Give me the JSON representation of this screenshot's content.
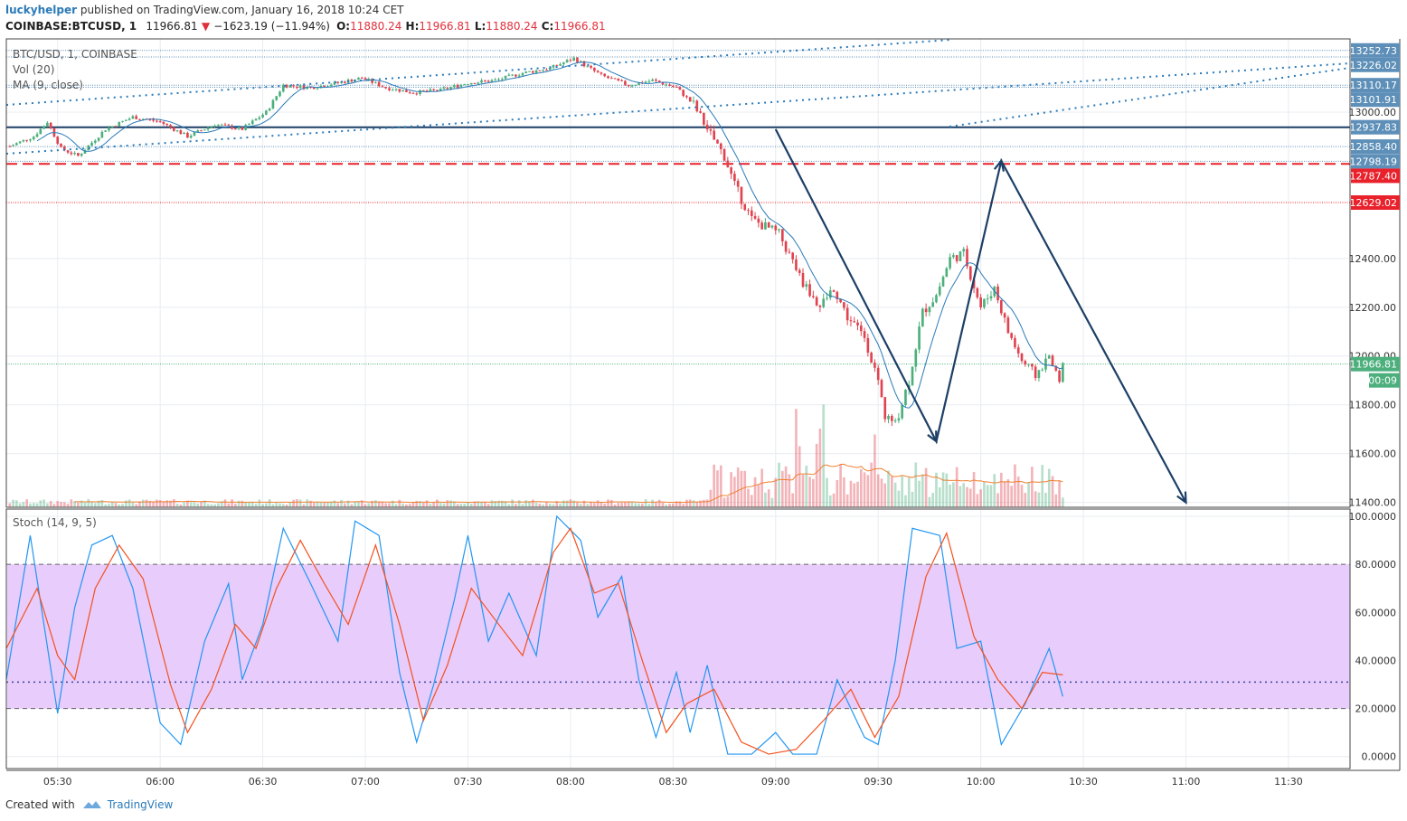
{
  "header": {
    "author": "luckyhelper",
    "published": " published on TradingView.com, January 16, 2018 10:24 CET"
  },
  "quote": {
    "symbol": "COINBASE:BTCUSD, 1",
    "last": "11966.81",
    "change": "−1623.19 (−11.94%)",
    "open_label": "O:",
    "open": "11880.24",
    "high_label": "H:",
    "high": "11966.81",
    "low_label": "L:",
    "low": "11880.24",
    "close_label": "C:",
    "close": "11966.81"
  },
  "legend": {
    "title": "BTC/USD, 1, COINBASE",
    "vol": "Vol (20)",
    "ma": "MA (9, close)",
    "stoch": "Stoch (14, 9, 5)"
  },
  "price_tags": [
    {
      "text": "13252.73",
      "value": 13252.73,
      "color": "#5d8fb8"
    },
    {
      "text": "13226.02",
      "value": 13226.02,
      "color": "#5d8fb8"
    },
    {
      "text": "13110.17",
      "value": 13110.17,
      "color": "#5d8fb8"
    },
    {
      "text": "13101.91",
      "value": 13101.91,
      "color": "#5d8fb8"
    },
    {
      "text": "12937.83",
      "value": 12937.83,
      "color": "#5d8fb8"
    },
    {
      "text": "12858.40",
      "value": 12858.4,
      "color": "#5d8fb8"
    },
    {
      "text": "12798.19",
      "value": 12798.19,
      "color": "#5d8fb8"
    },
    {
      "text": "12787.40",
      "value": 12787.4,
      "color": "#e8212b"
    },
    {
      "text": "12629.02",
      "value": 12629.02,
      "color": "#e8212b"
    },
    {
      "text": "11966.81",
      "value": 11966.81,
      "color": "#4caf7c"
    }
  ],
  "countdown": "00:09",
  "footer": {
    "created": "Created with",
    "brand": "TradingView"
  },
  "chart_data": [
    {
      "type": "candlestick",
      "title": "BTC/USD, 1, COINBASE",
      "ylim": [
        11380,
        13300
      ],
      "y_ticks": [
        "13000.00",
        "12400.00",
        "12200.00",
        "12000.00",
        "11800.00",
        "11600.00",
        "11400.00"
      ],
      "x_ticks": [
        "05:30",
        "06:00",
        "06:30",
        "07:00",
        "07:30",
        "08:00",
        "08:30",
        "09:00",
        "09:30",
        "10:00",
        "10:30",
        "11:00",
        "11:30"
      ],
      "x_start": "05:15",
      "x_end": "11:48",
      "close_path": [
        [
          "05:16",
          12860
        ],
        [
          "05:23",
          12900
        ],
        [
          "05:27",
          12960
        ],
        [
          "05:31",
          12850
        ],
        [
          "05:36",
          12820
        ],
        [
          "05:44",
          12930
        ],
        [
          "05:52",
          12980
        ],
        [
          "06:00",
          12960
        ],
        [
          "06:08",
          12900
        ],
        [
          "06:16",
          12950
        ],
        [
          "06:24",
          12930
        ],
        [
          "06:31",
          13000
        ],
        [
          "06:36",
          13110
        ],
        [
          "06:44",
          13100
        ],
        [
          "06:52",
          13120
        ],
        [
          "06:59",
          13140
        ],
        [
          "07:06",
          13100
        ],
        [
          "07:14",
          13080
        ],
        [
          "07:22",
          13090
        ],
        [
          "07:30",
          13120
        ],
        [
          "07:38",
          13130
        ],
        [
          "07:46",
          13160
        ],
        [
          "07:54",
          13180
        ],
        [
          "08:01",
          13220
        ],
        [
          "08:09",
          13150
        ],
        [
          "08:17",
          13110
        ],
        [
          "08:24",
          13130
        ],
        [
          "08:31",
          13100
        ],
        [
          "08:36",
          13030
        ],
        [
          "08:40",
          12930
        ],
        [
          "08:45",
          12820
        ],
        [
          "08:48",
          12700
        ],
        [
          "08:53",
          12560
        ],
        [
          "09:01",
          12500
        ],
        [
          "09:08",
          12300
        ],
        [
          "09:13",
          12200
        ],
        [
          "09:17",
          12280
        ],
        [
          "09:21",
          12160
        ],
        [
          "09:26",
          12080
        ],
        [
          "09:30",
          11900
        ],
        [
          "09:32",
          11750
        ],
        [
          "09:35",
          11720
        ],
        [
          "09:39",
          11900
        ],
        [
          "09:43",
          12180
        ],
        [
          "09:47",
          12250
        ],
        [
          "09:51",
          12400
        ],
        [
          "09:55",
          12420
        ],
        [
          "10:00",
          12200
        ],
        [
          "10:04",
          12280
        ],
        [
          "10:08",
          12100
        ],
        [
          "10:12",
          11980
        ],
        [
          "10:16",
          11920
        ],
        [
          "10:20",
          12000
        ],
        [
          "10:23",
          11900
        ],
        [
          "10:24",
          11966.81
        ]
      ],
      "volume_label": "Vol (20)",
      "ma_label": "MA (9, close)",
      "horizontal_levels": [
        12937.83,
        12787.4,
        12629.02,
        11966.81
      ],
      "projection": [
        [
          "09:00",
          12930
        ],
        [
          "09:47",
          11650
        ],
        [
          "10:06",
          12800
        ],
        [
          "11:00",
          11400
        ]
      ]
    },
    {
      "type": "line",
      "title": "Stoch (14, 9, 5)",
      "ylim": [
        -5,
        103
      ],
      "y_ticks": [
        "100.0000",
        "80.0000",
        "60.0000",
        "40.0000",
        "20.0000",
        "0.0000"
      ],
      "band": [
        20,
        80
      ],
      "series": [
        {
          "color": "#2196f3",
          "points": [
            [
              "05:15",
              32
            ],
            [
              "05:22",
              92
            ],
            [
              "05:26",
              55
            ],
            [
              "05:30",
              18
            ],
            [
              "05:35",
              62
            ],
            [
              "05:40",
              88
            ],
            [
              "05:46",
              92
            ],
            [
              "05:52",
              70
            ],
            [
              "06:00",
              14
            ],
            [
              "06:06",
              5
            ],
            [
              "06:13",
              48
            ],
            [
              "06:20",
              72
            ],
            [
              "06:24",
              32
            ],
            [
              "06:30",
              55
            ],
            [
              "06:36",
              95
            ],
            [
              "06:44",
              72
            ],
            [
              "06:52",
              48
            ],
            [
              "06:57",
              98
            ],
            [
              "07:04",
              92
            ],
            [
              "07:10",
              35
            ],
            [
              "07:15",
              6
            ],
            [
              "07:20",
              30
            ],
            [
              "07:26",
              65
            ],
            [
              "07:30",
              92
            ],
            [
              "07:36",
              48
            ],
            [
              "07:42",
              68
            ],
            [
              "07:50",
              42
            ],
            [
              "07:56",
              100
            ],
            [
              "08:03",
              90
            ],
            [
              "08:08",
              58
            ],
            [
              "08:15",
              75
            ],
            [
              "08:20",
              32
            ],
            [
              "08:25",
              8
            ],
            [
              "08:31",
              35
            ],
            [
              "08:35",
              10
            ],
            [
              "08:40",
              38
            ],
            [
              "08:46",
              1
            ],
            [
              "08:53",
              1
            ],
            [
              "09:00",
              10
            ],
            [
              "09:05",
              1
            ],
            [
              "09:12",
              1
            ],
            [
              "09:18",
              32
            ],
            [
              "09:26",
              8
            ],
            [
              "09:30",
              5
            ],
            [
              "09:35",
              40
            ],
            [
              "09:40",
              95
            ],
            [
              "09:48",
              92
            ],
            [
              "09:53",
              45
            ],
            [
              "10:00",
              48
            ],
            [
              "10:06",
              5
            ],
            [
              "10:13",
              22
            ],
            [
              "10:20",
              45
            ],
            [
              "10:24",
              25
            ]
          ]
        },
        {
          "color": "#f4511e",
          "points": [
            [
              "05:15",
              45
            ],
            [
              "05:24",
              70
            ],
            [
              "05:30",
              42
            ],
            [
              "05:35",
              32
            ],
            [
              "05:41",
              70
            ],
            [
              "05:48",
              88
            ],
            [
              "05:55",
              74
            ],
            [
              "06:03",
              30
            ],
            [
              "06:08",
              10
            ],
            [
              "06:15",
              28
            ],
            [
              "06:22",
              55
            ],
            [
              "06:28",
              45
            ],
            [
              "06:34",
              70
            ],
            [
              "06:41",
              90
            ],
            [
              "06:48",
              72
            ],
            [
              "06:55",
              55
            ],
            [
              "07:03",
              88
            ],
            [
              "07:10",
              55
            ],
            [
              "07:17",
              15
            ],
            [
              "07:24",
              38
            ],
            [
              "07:31",
              70
            ],
            [
              "07:39",
              55
            ],
            [
              "07:46",
              42
            ],
            [
              "07:55",
              85
            ],
            [
              "08:00",
              95
            ],
            [
              "08:07",
              68
            ],
            [
              "08:14",
              72
            ],
            [
              "08:21",
              40
            ],
            [
              "08:28",
              10
            ],
            [
              "08:34",
              22
            ],
            [
              "08:42",
              28
            ],
            [
              "08:50",
              6
            ],
            [
              "08:58",
              1
            ],
            [
              "09:06",
              3
            ],
            [
              "09:14",
              15
            ],
            [
              "09:22",
              28
            ],
            [
              "09:29",
              8
            ],
            [
              "09:36",
              25
            ],
            [
              "09:44",
              75
            ],
            [
              "09:50",
              93
            ],
            [
              "09:58",
              50
            ],
            [
              "10:05",
              32
            ],
            [
              "10:12",
              20
            ],
            [
              "10:18",
              35
            ],
            [
              "10:24",
              34
            ]
          ]
        }
      ]
    }
  ]
}
